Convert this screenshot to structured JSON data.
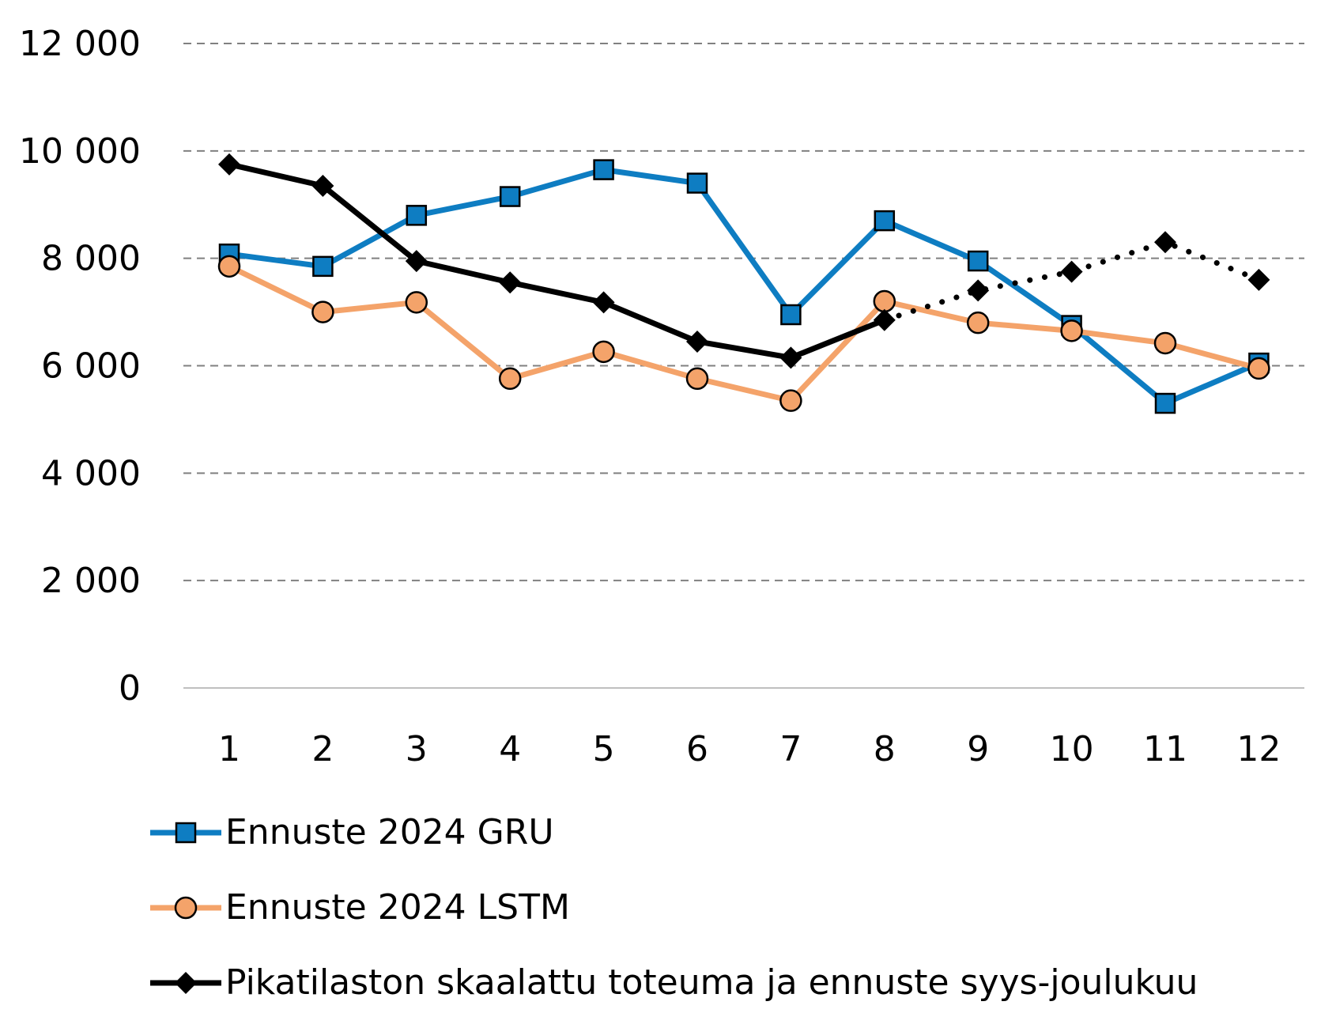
{
  "chart_data": {
    "type": "line",
    "title": "",
    "xlabel": "",
    "ylabel": "",
    "categories": [
      "1",
      "2",
      "3",
      "4",
      "5",
      "6",
      "7",
      "8",
      "9",
      "10",
      "11",
      "12"
    ],
    "ylim": [
      0,
      12000
    ],
    "yticks": [
      0,
      2000,
      4000,
      6000,
      8000,
      10000,
      12000
    ],
    "ytick_labels": [
      "0",
      "2 000",
      "4 000",
      "6 000",
      "8 000",
      "10 000",
      "12 000"
    ],
    "grid": true,
    "legend_position": "bottom",
    "series": [
      {
        "name": "Ennuste 2024 GRU",
        "color": "#0e7dc2",
        "marker": "square",
        "values": [
          8080,
          7850,
          8800,
          9150,
          9650,
          9400,
          6950,
          8700,
          7950,
          6750,
          5300,
          6050
        ]
      },
      {
        "name": "Ennuste 2024 LSTM",
        "color": "#f4a36a",
        "marker": "circle",
        "values": [
          7850,
          7000,
          7180,
          5760,
          6260,
          5760,
          5350,
          7200,
          6800,
          6650,
          6420,
          5950
        ]
      },
      {
        "name": "Pikatilaston skaalattu toteuma ja ennuste syys-joulukuu",
        "color": "#000000",
        "marker": "diamond",
        "values": [
          9750,
          9350,
          7950,
          7550,
          7180,
          6450,
          6150,
          6850,
          7400,
          7750,
          8300,
          7600
        ],
        "solid_until_index": 7
      }
    ]
  }
}
